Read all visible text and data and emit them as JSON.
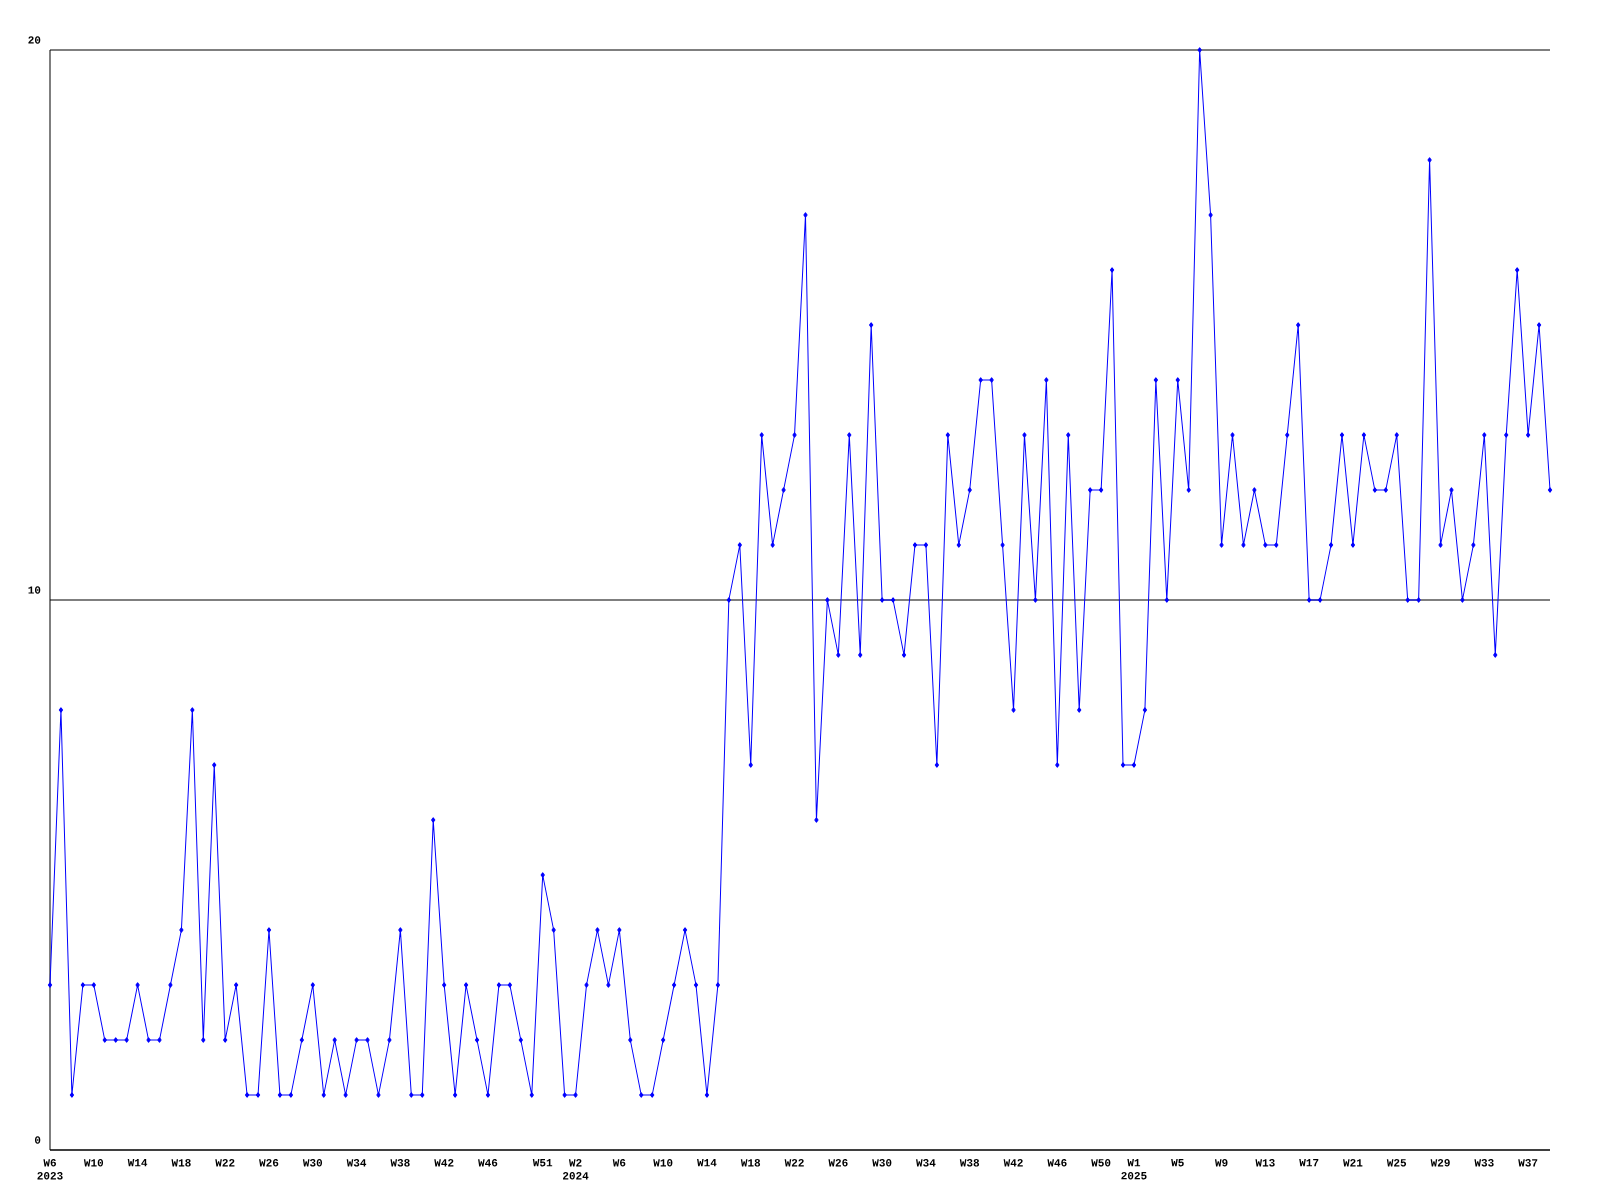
{
  "chart_data": {
    "type": "line",
    "color": "#0000ff",
    "marker": "diamond",
    "line_style": "solid",
    "grid": "y",
    "ylim": [
      0,
      20
    ],
    "yticks": [
      0,
      10,
      20
    ],
    "categories": [
      "W6 2023",
      null,
      null,
      null,
      "W10",
      null,
      null,
      null,
      "W14",
      null,
      null,
      null,
      "W18",
      null,
      null,
      null,
      "W22",
      null,
      null,
      null,
      "W26",
      null,
      null,
      null,
      "W30",
      null,
      null,
      null,
      "W34",
      null,
      null,
      null,
      "W38",
      null,
      null,
      null,
      "W42",
      null,
      null,
      null,
      "W46",
      null,
      null,
      null,
      null,
      "W51",
      null,
      null,
      "W2 2024",
      null,
      null,
      null,
      "W6",
      null,
      null,
      null,
      "W10",
      null,
      null,
      null,
      "W14",
      null,
      null,
      null,
      "W18",
      null,
      null,
      null,
      "W22",
      null,
      null,
      null,
      "W26",
      null,
      null,
      null,
      "W30",
      null,
      null,
      null,
      "W34",
      null,
      null,
      null,
      "W38",
      null,
      null,
      null,
      "W42",
      null,
      null,
      null,
      "W46",
      null,
      null,
      null,
      "W50",
      null,
      null,
      "W1 2025",
      null,
      null,
      null,
      "W5",
      null,
      null,
      null,
      "W9",
      null,
      null,
      null,
      "W13",
      null,
      null,
      null,
      "W17",
      null,
      null,
      null,
      "W21",
      null,
      null,
      null,
      "W25",
      null,
      null,
      null,
      "W29",
      null,
      null,
      null,
      "W33",
      null,
      null,
      null,
      "W37",
      null,
      null
    ],
    "values": [
      3,
      8,
      1,
      3,
      3,
      2,
      2,
      2,
      3,
      2,
      2,
      3,
      4,
      8,
      2,
      7,
      2,
      3,
      1,
      1,
      4,
      1,
      1,
      2,
      3,
      1,
      2,
      1,
      2,
      2,
      1,
      2,
      4,
      1,
      1,
      6,
      3,
      1,
      3,
      2,
      1,
      3,
      3,
      2,
      1,
      5,
      4,
      1,
      1,
      3,
      4,
      3,
      4,
      2,
      1,
      1,
      2,
      3,
      4,
      3,
      1,
      3,
      10,
      11,
      7,
      13,
      11,
      12,
      13,
      17,
      6,
      10,
      9,
      13,
      9,
      15,
      10,
      10,
      9,
      11,
      11,
      7,
      13,
      11,
      12,
      14,
      14,
      11,
      8,
      13,
      10,
      14,
      7,
      13,
      8,
      12,
      12,
      16,
      7,
      7,
      8,
      14,
      10,
      14,
      12,
      20,
      17,
      11,
      13,
      11,
      12,
      11,
      11,
      13,
      15,
      10,
      10,
      11,
      13,
      11,
      13,
      12,
      12,
      13,
      10,
      10,
      18,
      11,
      12,
      10,
      11,
      13,
      9,
      13,
      16,
      13,
      15,
      12
    ]
  }
}
